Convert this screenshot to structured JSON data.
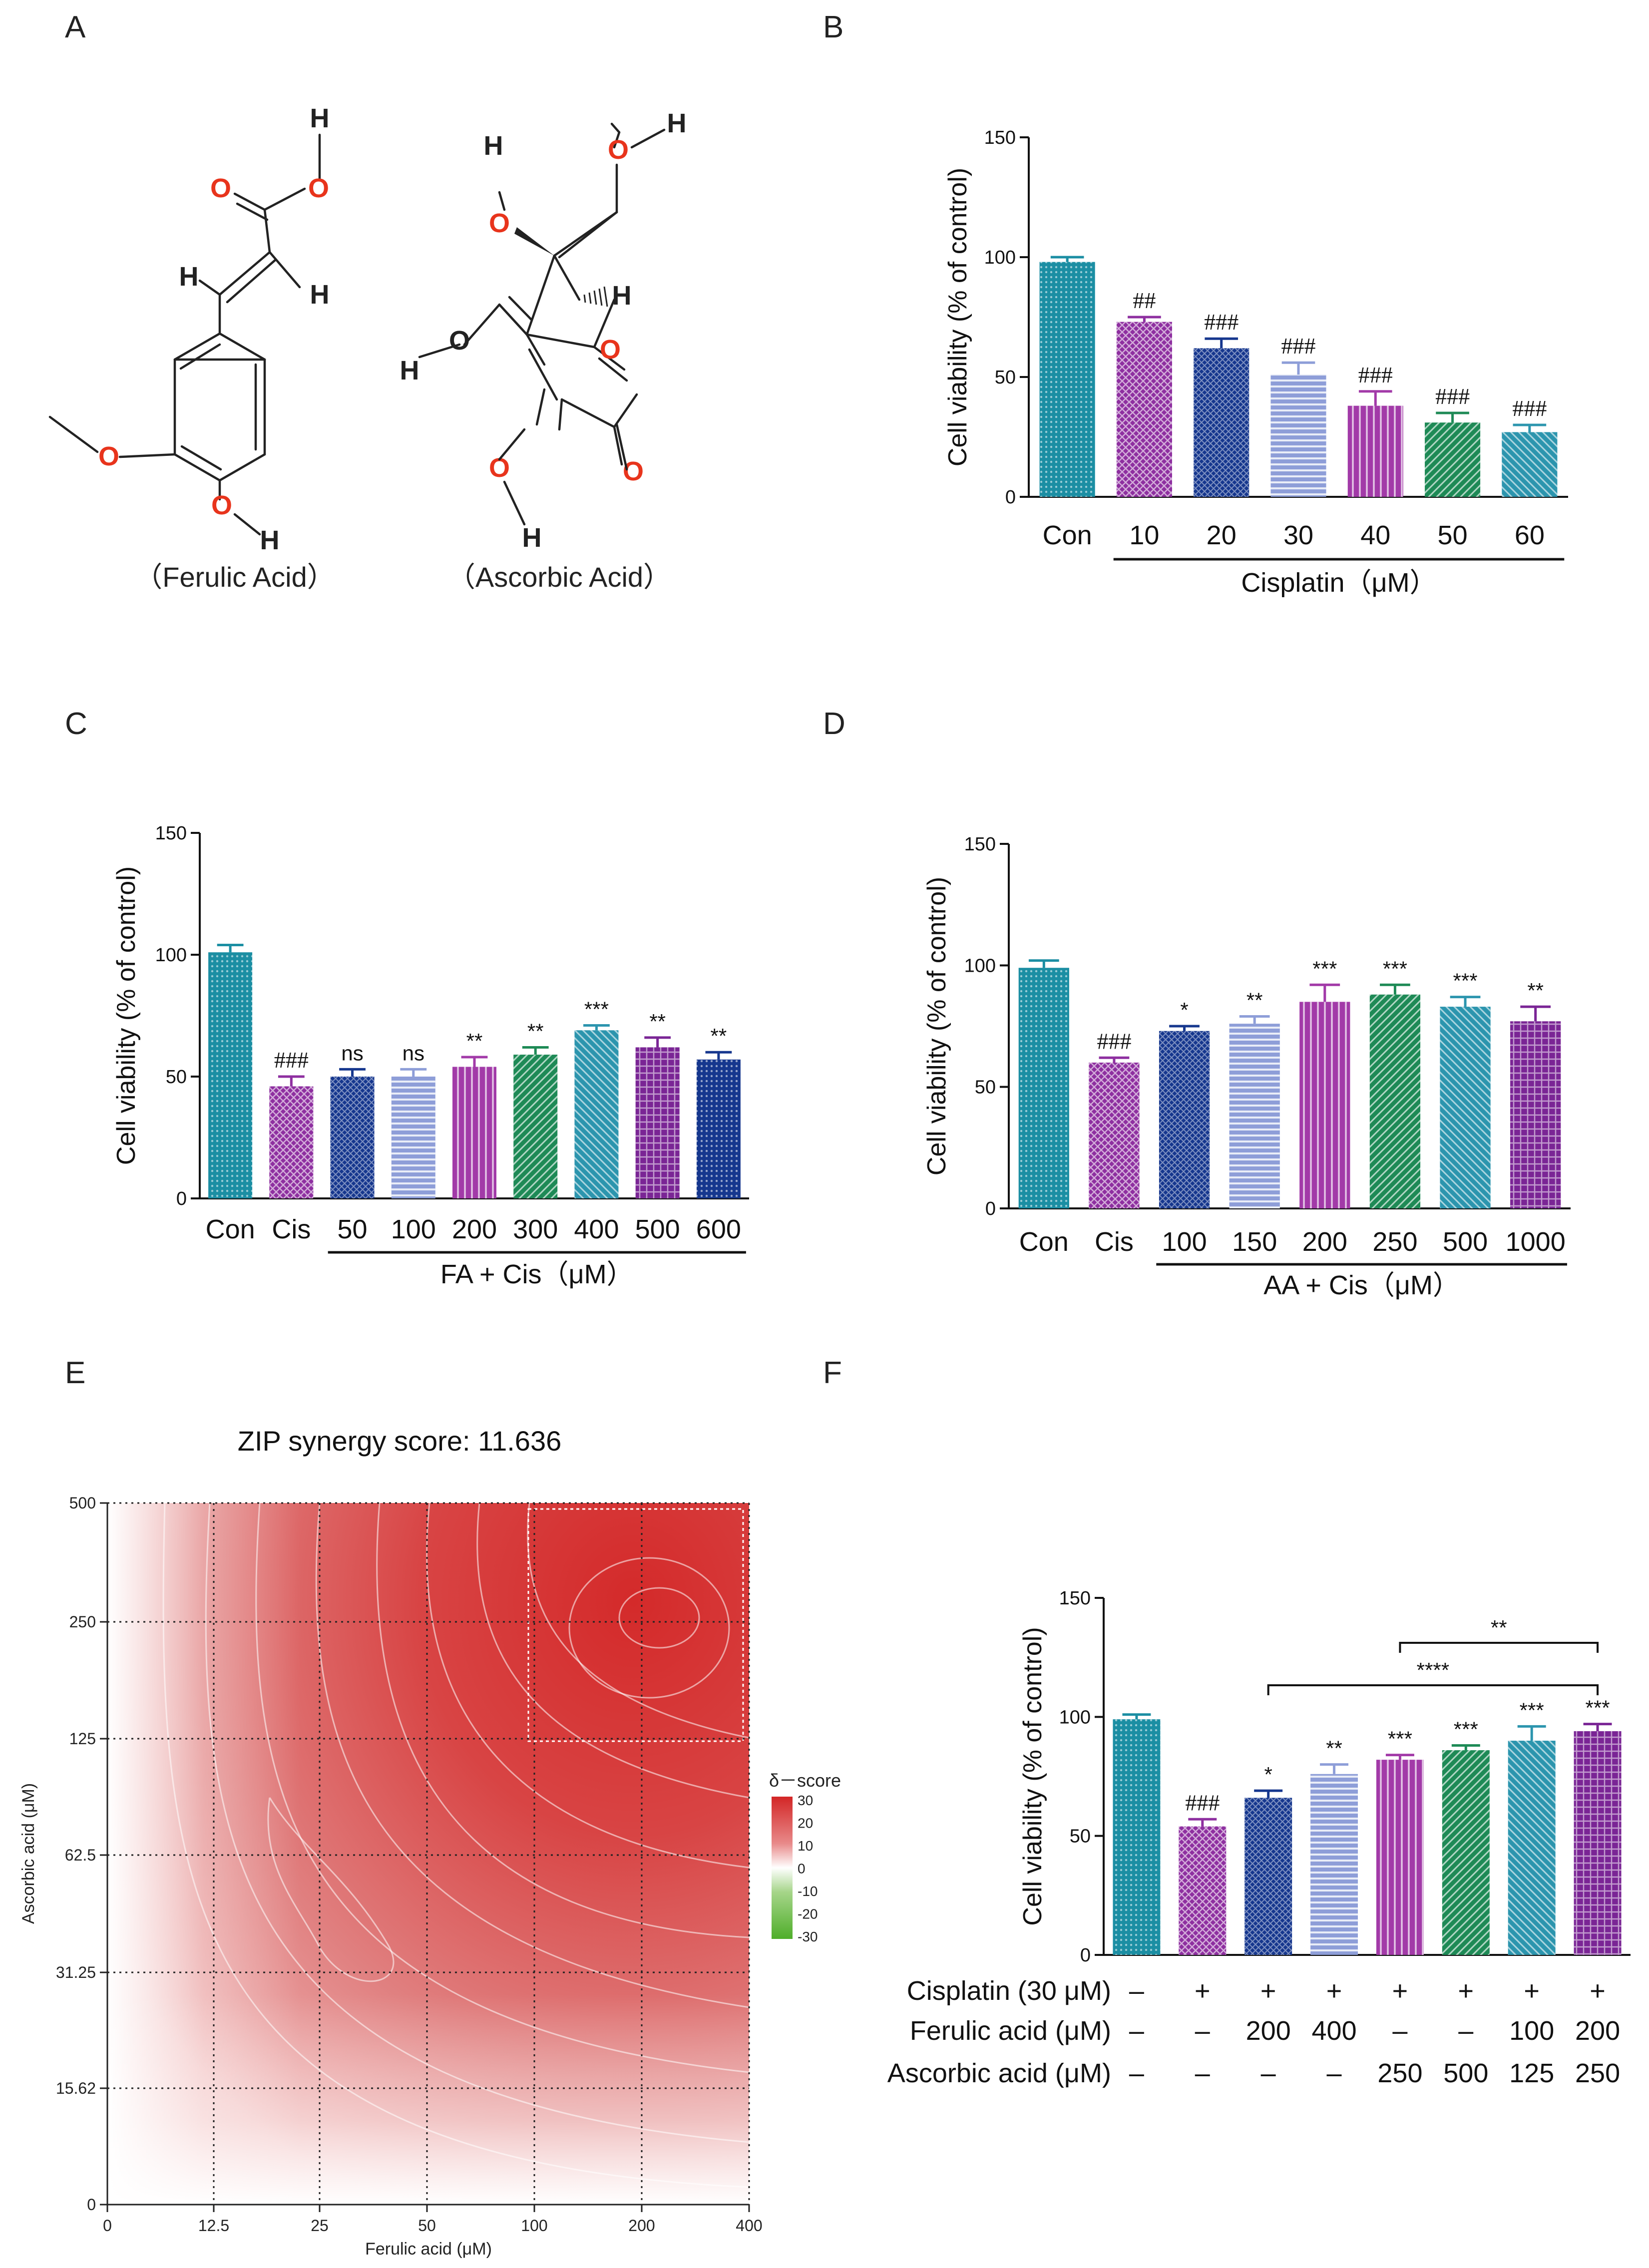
{
  "panels": {
    "A": "A",
    "B": "B",
    "C": "C",
    "D": "D",
    "E": "E",
    "F": "F"
  },
  "molecules": {
    "ferulic_name": "（Ferulic Acid）",
    "ascorbic_name": "（Ascorbic Acid）",
    "atoms": {
      "O": "O",
      "H": "H"
    }
  },
  "chart_data": [
    {
      "id": "B",
      "type": "bar",
      "ylabel": "Cell viability (% of control)",
      "ylim": [
        0,
        150
      ],
      "yticks": [
        0,
        50,
        100,
        150
      ],
      "categories": [
        "Con",
        "10",
        "20",
        "30",
        "40",
        "50",
        "60"
      ],
      "values": [
        98,
        73,
        62,
        51,
        38,
        31,
        27
      ],
      "errors": [
        2,
        2,
        4,
        5,
        6,
        4,
        3
      ],
      "annotations": [
        "",
        "##",
        "###",
        "###",
        "###",
        "###",
        "###"
      ],
      "group_label": "Cisplatin（μM）",
      "group_start": 1
    },
    {
      "id": "C",
      "type": "bar",
      "ylabel": "Cell viability (% of control)",
      "ylim": [
        0,
        150
      ],
      "yticks": [
        0,
        50,
        100,
        150
      ],
      "categories": [
        "Con",
        "Cis",
        "50",
        "100",
        "200",
        "300",
        "400",
        "500",
        "600"
      ],
      "values": [
        101,
        46,
        50,
        50,
        54,
        59,
        69,
        62,
        57
      ],
      "errors": [
        3,
        4,
        3,
        3,
        4,
        3,
        2,
        4,
        3
      ],
      "annotations": [
        "",
        "###",
        "ns",
        "ns",
        "**",
        "**",
        "***",
        "**",
        "**"
      ],
      "group_label": "FA + Cis（μM）",
      "group_start": 2
    },
    {
      "id": "D",
      "type": "bar",
      "ylabel": "Cell viability (% of control)",
      "ylim": [
        0,
        150
      ],
      "yticks": [
        0,
        50,
        100,
        150
      ],
      "categories": [
        "Con",
        "Cis",
        "100",
        "150",
        "200",
        "250",
        "500",
        "1000"
      ],
      "values": [
        99,
        60,
        73,
        76,
        85,
        88,
        83,
        77
      ],
      "errors": [
        3,
        2,
        2,
        3,
        7,
        4,
        4,
        6
      ],
      "annotations": [
        "",
        "###",
        "*",
        "**",
        "***",
        "***",
        "***",
        "**"
      ],
      "group_label": "AA + Cis（μM）",
      "group_start": 2
    },
    {
      "id": "E",
      "type": "heatmap",
      "title": "ZIP synergy score: 11.636",
      "xlabel": "Ferulic acid (μM)",
      "ylabel": "Ascorbic acid (μM)",
      "x_ticks": [
        "0",
        "12.5",
        "25",
        "50",
        "100",
        "200",
        "400"
      ],
      "y_ticks": [
        "0",
        "15.62",
        "31.25",
        "62.5",
        "125",
        "250",
        "500"
      ],
      "legend_title": "δ－score",
      "legend_ticks": [
        "30",
        "20",
        "10",
        "0",
        "-10",
        "-20",
        "-30"
      ],
      "range": [
        -30,
        30
      ],
      "peak_region": {
        "x": [
          "100",
          "400"
        ],
        "y": [
          "125",
          "500"
        ]
      }
    },
    {
      "id": "F",
      "type": "bar",
      "ylabel": "Cell viability (% of control)",
      "ylim": [
        0,
        150
      ],
      "yticks": [
        0,
        50,
        100,
        150
      ],
      "values": [
        99,
        54,
        66,
        76,
        82,
        86,
        90,
        94
      ],
      "errors": [
        2,
        3,
        3,
        4,
        2,
        2,
        6,
        3
      ],
      "annotations": [
        "",
        "###",
        "*",
        "**",
        "***",
        "***",
        "***",
        "***"
      ],
      "brackets": [
        {
          "from": 4,
          "to": 7,
          "label": "**"
        },
        {
          "from": 2,
          "to": 7,
          "label": "****"
        }
      ],
      "table": [
        {
          "label": "Cisplatin  (30 μM)",
          "cells": [
            "–",
            "+",
            "+",
            "+",
            "+",
            "+",
            "+",
            "+"
          ]
        },
        {
          "label": "Ferulic acid (μM)",
          "cells": [
            "–",
            "–",
            "200",
            "400",
            "–",
            "–",
            "100",
            "200"
          ]
        },
        {
          "label": "Ascorbic acid (μM)",
          "cells": [
            "–",
            "–",
            "–",
            "–",
            "250",
            "500",
            "125",
            "250"
          ]
        }
      ]
    }
  ],
  "colors": {
    "teal": "#1B8EA3",
    "purple": "#8E2FA0",
    "navy": "#16378E",
    "lavender": "#8E9ED8",
    "orchid": "#A23AA8",
    "green": "#1E8A56",
    "cyan": "#2C95AE",
    "deep_purple": "#7A2595",
    "oxygen": "#E8341C",
    "bond": "#222222"
  }
}
